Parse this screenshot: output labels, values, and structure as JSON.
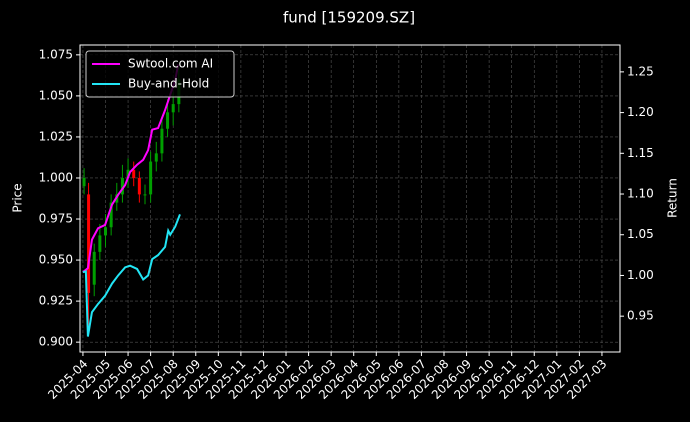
{
  "chart_data": {
    "type": "candlestick",
    "title": "fund [159209.SZ]",
    "ylabel": "Price",
    "y2label": "Return",
    "grid": true,
    "legend": "upper left",
    "xlim": [
      -0.13,
      23.8
    ],
    "xticks": [
      {
        "value": 0,
        "label": "2025-04"
      },
      {
        "value": 1,
        "label": "2025-05"
      },
      {
        "value": 2,
        "label": "2025-06"
      },
      {
        "value": 3,
        "label": "2025-07"
      },
      {
        "value": 4,
        "label": "2025-08"
      },
      {
        "value": 5,
        "label": "2025-09"
      },
      {
        "value": 6,
        "label": "2025-10"
      },
      {
        "value": 7,
        "label": "2025-11"
      },
      {
        "value": 8,
        "label": "2025-12"
      },
      {
        "value": 9,
        "label": "2026-01"
      },
      {
        "value": 10,
        "label": "2026-02"
      },
      {
        "value": 11,
        "label": "2026-03"
      },
      {
        "value": 12,
        "label": "2026-04"
      },
      {
        "value": 13,
        "label": "2026-05"
      },
      {
        "value": 14,
        "label": "2026-06"
      },
      {
        "value": 15,
        "label": "2026-07"
      },
      {
        "value": 16,
        "label": "2026-08"
      },
      {
        "value": 17,
        "label": "2026-09"
      },
      {
        "value": 18,
        "label": "2026-10"
      },
      {
        "value": 19,
        "label": "2026-11"
      },
      {
        "value": 20,
        "label": "2026-12"
      },
      {
        "value": 21,
        "label": "2027-01"
      },
      {
        "value": 22,
        "label": "2027-02"
      },
      {
        "value": 23,
        "label": "2027-03"
      }
    ],
    "ylim": [
      0.894,
      1.081
    ],
    "yticks": [
      {
        "value": 0.9,
        "label": "0.900"
      },
      {
        "value": 0.925,
        "label": "0.925"
      },
      {
        "value": 0.95,
        "label": "0.950"
      },
      {
        "value": 0.975,
        "label": "0.975"
      },
      {
        "value": 1.0,
        "label": "1.000"
      },
      {
        "value": 1.025,
        "label": "1.025"
      },
      {
        "value": 1.05,
        "label": "1.050"
      },
      {
        "value": 1.075,
        "label": "1.075"
      }
    ],
    "y2lim": [
      0.906,
      1.283
    ],
    "y2ticks": [
      {
        "value": 0.95,
        "label": "0.95"
      },
      {
        "value": 1.0,
        "label": "1.00"
      },
      {
        "value": 1.05,
        "label": "1.05"
      },
      {
        "value": 1.1,
        "label": "1.10"
      },
      {
        "value": 1.15,
        "label": "1.15"
      },
      {
        "value": 1.2,
        "label": "1.20"
      },
      {
        "value": 1.25,
        "label": "1.25"
      }
    ],
    "candles": {
      "up_color": "#00a000",
      "down_color": "#ff0000",
      "x": [
        0.05,
        0.25,
        0.5,
        0.75,
        1.0,
        1.25,
        1.5,
        1.75,
        2.0,
        2.25,
        2.5,
        2.75,
        3.0,
        3.25,
        3.5,
        3.75,
        4.0,
        4.25
      ],
      "open": [
        0.995,
        0.99,
        0.935,
        0.955,
        0.965,
        0.97,
        0.985,
        0.99,
        1.0,
        1.005,
        1.0,
        0.99,
        0.99,
        1.01,
        1.015,
        1.03,
        1.04,
        1.045
      ],
      "close": [
        1.0,
        0.93,
        0.955,
        0.965,
        0.97,
        0.985,
        0.99,
        1.0,
        1.005,
        1.0,
        0.99,
        0.99,
        1.01,
        1.015,
        1.03,
        1.04,
        1.045,
        1.06
      ],
      "high": [
        1.006,
        0.997,
        0.96,
        0.972,
        0.978,
        0.99,
        0.997,
        1.008,
        1.012,
        1.01,
        1.004,
        0.996,
        1.016,
        1.022,
        1.036,
        1.048,
        1.052,
        1.068
      ],
      "low": [
        0.99,
        0.91,
        0.928,
        0.95,
        0.958,
        0.965,
        0.98,
        0.985,
        0.994,
        0.995,
        0.985,
        0.984,
        0.985,
        1.004,
        1.01,
        1.025,
        1.032,
        1.04
      ]
    },
    "series": [
      {
        "name": "Swtool.com AI",
        "color": "#ff00ff",
        "axis": "y2",
        "x": [
          0,
          0.22,
          0.4,
          0.67,
          0.98,
          1.29,
          1.56,
          1.87,
          2.09,
          2.4,
          2.67,
          2.89,
          3.07,
          3.33,
          3.64,
          3.87,
          4.09,
          4.22
        ],
        "values": [
          1.004,
          1.009,
          1.044,
          1.058,
          1.062,
          1.087,
          1.099,
          1.111,
          1.127,
          1.136,
          1.142,
          1.154,
          1.179,
          1.181,
          1.203,
          1.222,
          1.24,
          1.259
        ]
      },
      {
        "name": "Buy-and-Hold",
        "color": "#22e5f5",
        "axis": "y2",
        "x": [
          0,
          0.13,
          0.22,
          0.4,
          0.67,
          0.98,
          1.29,
          1.56,
          1.87,
          2.09,
          2.4,
          2.67,
          2.89,
          3.07,
          3.33,
          3.64,
          3.78,
          3.87,
          4.09,
          4.3
        ],
        "values": [
          1.004,
          1.005,
          0.925,
          0.955,
          0.965,
          0.975,
          0.99,
          1.0,
          1.01,
          1.012,
          1.008,
          0.995,
          1.0,
          1.02,
          1.025,
          1.035,
          1.055,
          1.05,
          1.06,
          1.075
        ]
      }
    ]
  }
}
